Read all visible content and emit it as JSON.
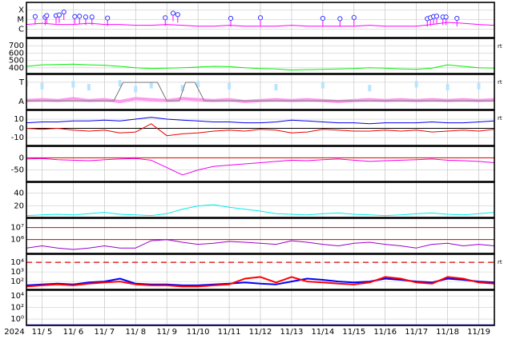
{
  "xaxis": {
    "label": "2024",
    "xlim": [
      4.5,
      19.5
    ],
    "xticks": [
      {
        "value": 5,
        "label": "11/ 5"
      },
      {
        "value": 6,
        "label": "11/ 6"
      },
      {
        "value": 7,
        "label": "11/ 7"
      },
      {
        "value": 8,
        "label": "11/ 8"
      },
      {
        "value": 9,
        "label": "11/ 9"
      },
      {
        "value": 10,
        "label": "11/10"
      },
      {
        "value": 11,
        "label": "11/11"
      },
      {
        "value": 12,
        "label": "11/12"
      },
      {
        "value": 13,
        "label": "11/13"
      },
      {
        "value": 14,
        "label": "11/14"
      },
      {
        "value": 15,
        "label": "11/15"
      },
      {
        "value": 16,
        "label": "11/16"
      },
      {
        "value": 17,
        "label": "11/17"
      },
      {
        "value": 18,
        "label": "11/18"
      },
      {
        "value": 19,
        "label": "11/19"
      }
    ],
    "x": [
      4.5,
      5,
      5.5,
      6,
      6.5,
      7,
      7.5,
      8,
      8.5,
      9,
      9.5,
      10,
      10.5,
      11,
      11.5,
      12,
      12.5,
      13,
      13.5,
      14,
      14.5,
      15,
      15.5,
      16,
      16.5,
      17,
      17.5,
      18,
      18.5,
      19,
      19.5
    ]
  },
  "chart_data": [
    {
      "type": "line",
      "log": true,
      "ylim": [
        1.3e-07,
        0.0006
      ],
      "yticks": [
        {
          "value": 0.0001,
          "label": "X"
        },
        {
          "value": 1e-05,
          "label": "M"
        },
        {
          "value": 1e-06,
          "label": "C"
        }
      ],
      "series": [
        {
          "color": "#ff00ff",
          "values": [
            3e-06,
            4e-06,
            3e-06,
            3e-06,
            4e-06,
            3e-06,
            3e-06,
            2.5e-06,
            2.5e-06,
            3e-06,
            2.5e-06,
            2e-06,
            2e-06,
            2.5e-06,
            2e-06,
            2e-06,
            2e-06,
            2.5e-06,
            2e-06,
            2e-06,
            2e-06,
            2e-06,
            2.5e-06,
            2e-06,
            2e-06,
            2e-06,
            3e-06,
            5e-06,
            4e-06,
            3e-06,
            2.5e-06
          ]
        }
      ],
      "flares": {
        "color": "#3333ff",
        "x": [
          4.78,
          5.1,
          5.15,
          5.45,
          5.55,
          5.7,
          6.05,
          6.2,
          6.4,
          6.6,
          7.1,
          8.95,
          9.2,
          9.35,
          11.05,
          12.0,
          14.0,
          14.55,
          15.0,
          17.35,
          17.45,
          17.55,
          17.65,
          17.85,
          17.95,
          18.3
        ],
        "values": [
          2e-05,
          1.7e-05,
          2.5e-05,
          2.5e-05,
          3e-05,
          6e-05,
          2e-05,
          2.2e-05,
          1.8e-05,
          1.8e-05,
          1.4e-05,
          1.5e-05,
          4.5e-05,
          3.2e-05,
          1.3e-05,
          1.5e-05,
          1.3e-05,
          1.2e-05,
          1.6e-05,
          1.2e-05,
          1.5e-05,
          2e-05,
          2.2e-05,
          1.8e-05,
          1.8e-05,
          1.3e-05
        ]
      }
    },
    {
      "type": "line",
      "ylim": [
        322,
        800
      ],
      "yticks": [
        700,
        600,
        500,
        400
      ],
      "rt_label": "rt",
      "series": [
        {
          "color": "#00ee00",
          "values": [
            420,
            440,
            445,
            450,
            440,
            435,
            420,
            400,
            390,
            395,
            400,
            410,
            420,
            415,
            400,
            390,
            385,
            370,
            375,
            380,
            385,
            390,
            400,
            395,
            385,
            380,
            395,
            440,
            420,
            400,
            395
          ]
        }
      ]
    },
    {
      "type": "line",
      "ylim": [
        -1.83,
        1.83
      ],
      "yticks": [
        {
          "value": 1,
          "label": "T"
        },
        {
          "value": -1,
          "label": "A"
        }
      ],
      "rt_label": "rt",
      "series": [
        {
          "color": "#b8e4ff",
          "style": "dots",
          "values": [
            0.9,
            0.6,
            null,
            0.8,
            0.5,
            null,
            0.9,
            0.3,
            0.7,
            null,
            0.4,
            0.8,
            null,
            0.6,
            null,
            null,
            0.5,
            null,
            null,
            0.7,
            null,
            null,
            0.4,
            null,
            null,
            0.8,
            null,
            0.5,
            null,
            0.6,
            null
          ]
        },
        {
          "color": "#ff99ee",
          "width": 4,
          "values": [
            -0.9,
            -0.8,
            -0.9,
            -0.7,
            -0.9,
            -0.8,
            -1.0,
            -0.7,
            -0.8,
            -0.9,
            -0.7,
            -0.8,
            -0.9,
            -0.8,
            -1.0,
            -0.9,
            -0.8,
            -0.9,
            -0.8,
            -0.9,
            -1.0,
            -0.9,
            -0.8,
            -0.9,
            -0.8,
            -0.9,
            -0.8,
            -0.9,
            -0.8,
            -0.9,
            -0.8
          ]
        },
        {
          "color": "#777777",
          "x": [
            4.5,
            7.3,
            7.6,
            8.7,
            9.0,
            9.4,
            9.6,
            9.9,
            10.2,
            19.5
          ],
          "values": [
            -0.92,
            -0.92,
            1,
            1,
            -0.92,
            -0.92,
            1,
            1,
            -0.92,
            -0.92
          ]
        }
      ]
    },
    {
      "type": "line",
      "ylim": [
        -18.7,
        19.6
      ],
      "yticks": [
        10,
        0,
        -10
      ],
      "rt_label": "rt",
      "hlines": [
        {
          "value": 0,
          "color": "#000000"
        }
      ],
      "series": [
        {
          "color": "#0000ee",
          "values": [
            6,
            7,
            7,
            8,
            8,
            9,
            8,
            10,
            12,
            10,
            9,
            8,
            7,
            7,
            6,
            6,
            7,
            9,
            8,
            7,
            6,
            6,
            5,
            6,
            6,
            6,
            7,
            6,
            6,
            7,
            8
          ]
        },
        {
          "color": "#ee0000",
          "values": [
            0,
            -1,
            0,
            -2,
            -3,
            -2,
            -5,
            -4,
            5,
            -8,
            -6,
            -5,
            -3,
            -2,
            -3,
            -1,
            -2,
            -5,
            -4,
            -1,
            -2,
            -3,
            -3,
            -2,
            -3,
            -2,
            -4,
            -3,
            -2,
            -3,
            -1
          ]
        }
      ]
    },
    {
      "type": "line",
      "ylim": [
        -97,
        47
      ],
      "yticks": [
        0,
        -50
      ],
      "hlines": [
        {
          "value": 0,
          "color": "#dd0000"
        }
      ],
      "series": [
        {
          "color": "#ee00ee",
          "values": [
            -5,
            -3,
            -8,
            -10,
            -12,
            -8,
            -5,
            -3,
            -10,
            -40,
            -70,
            -50,
            -35,
            -30,
            -25,
            -20,
            -15,
            -10,
            -12,
            -8,
            -5,
            -10,
            -15,
            -12,
            -10,
            -8,
            -5,
            -10,
            -12,
            -15,
            -20
          ]
        }
      ]
    },
    {
      "type": "line",
      "ylim": [
        2,
        57
      ],
      "yticks": [
        40,
        20
      ],
      "series": [
        {
          "color": "#00eeee",
          "values": [
            5,
            6,
            7,
            6,
            8,
            10,
            7,
            6,
            5,
            8,
            15,
            20,
            22,
            18,
            15,
            12,
            8,
            7,
            6,
            8,
            9,
            7,
            6,
            5,
            6,
            8,
            9,
            7,
            6,
            8,
            10
          ]
        }
      ]
    },
    {
      "type": "line",
      "log": true,
      "ylim": [
        70000,
        60000000
      ],
      "yticks": [
        {
          "value": 10000000,
          "label": "10⁷"
        },
        {
          "value": 1000000,
          "label": "10⁶"
        }
      ],
      "hlines": [
        {
          "value": 10000000,
          "color": "#dd0000"
        },
        {
          "value": 1000000,
          "color": "#dd0000"
        }
      ],
      "series": [
        {
          "color": "#9900cc",
          "values": [
            200000,
            300000,
            200000,
            150000,
            200000,
            300000,
            200000,
            200000,
            800000,
            1000000,
            600000,
            400000,
            500000,
            700000,
            600000,
            500000,
            400000,
            800000,
            600000,
            400000,
            300000,
            500000,
            600000,
            400000,
            300000,
            200000,
            400000,
            500000,
            300000,
            400000,
            300000
          ]
        }
      ]
    },
    {
      "type": "line",
      "log": true,
      "ylim": [
        15,
        70000
      ],
      "yticks": [
        {
          "value": 10000,
          "label": "10⁴"
        },
        {
          "value": 1000,
          "label": "10³"
        },
        {
          "value": 100,
          "label": "10²"
        }
      ],
      "rt_label": "rt",
      "hlines": [
        {
          "value": 10000,
          "color": "#dd0000",
          "dashed": true
        }
      ],
      "series": [
        {
          "color": "#0000ff",
          "width": 2,
          "values": [
            40,
            50,
            60,
            50,
            80,
            100,
            200,
            60,
            50,
            50,
            40,
            40,
            50,
            60,
            80,
            60,
            50,
            100,
            200,
            150,
            100,
            80,
            100,
            200,
            150,
            100,
            80,
            200,
            150,
            100,
            80
          ]
        },
        {
          "color": "#ff0000",
          "width": 2,
          "values": [
            30,
            40,
            50,
            40,
            60,
            80,
            100,
            50,
            40,
            40,
            30,
            30,
            40,
            50,
            200,
            300,
            80,
            300,
            100,
            80,
            60,
            50,
            80,
            300,
            200,
            80,
            60,
            300,
            200,
            80,
            60
          ]
        }
      ]
    },
    {
      "type": "line",
      "log": true,
      "ylim": [
        0.08,
        100000
      ],
      "yticks": [
        {
          "value": 10000,
          "label": "10⁴"
        },
        {
          "value": 100,
          "label": "10²"
        },
        {
          "value": 1,
          "label": "10⁰"
        }
      ],
      "series": [
        {
          "color": "#0000ff",
          "values": [
            0.1,
            0.1,
            0.1,
            0.1,
            0.1,
            0.1,
            0.1,
            0.1,
            0.1,
            0.1,
            0.1,
            0.1,
            0.1,
            0.1,
            0.1,
            0.1,
            0.1,
            0.1,
            0.1,
            0.1,
            0.1,
            0.1,
            0.1,
            0.1,
            0.1,
            0.1,
            0.1,
            0.1,
            0.1,
            0.1,
            0.1
          ]
        }
      ]
    }
  ]
}
